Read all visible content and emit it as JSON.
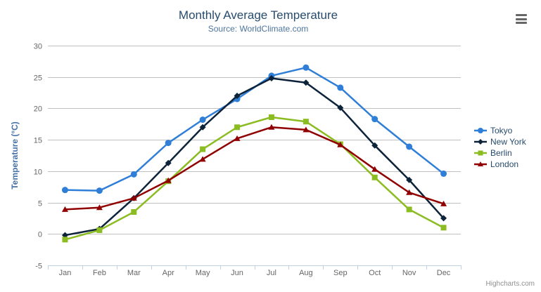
{
  "title": "Monthly Average Temperature",
  "subtitle": "Source: WorldClimate.com",
  "credits": "Highcharts.com",
  "export_menu": {
    "icon": "hamburger-icon"
  },
  "colors": {
    "title": "#274b6d",
    "subtitle": "#4d759e",
    "axis_labels": "#666666",
    "axis_title": "#4572a7",
    "gridline": "#c0c0c0",
    "axis_line": "#c0d0e0",
    "legend_text": "#274b6d",
    "credits_text": "#909090",
    "background": "#ffffff"
  },
  "chart_data": {
    "type": "line",
    "title": "Monthly Average Temperature",
    "subtitle": "Source: WorldClimate.com",
    "xlabel": "",
    "ylabel": "Temperature (°C)",
    "categories": [
      "Jan",
      "Feb",
      "Mar",
      "Apr",
      "May",
      "Jun",
      "Jul",
      "Aug",
      "Sep",
      "Oct",
      "Nov",
      "Dec"
    ],
    "ylim": [
      -5,
      30
    ],
    "yticks": [
      -5,
      0,
      5,
      10,
      15,
      20,
      25,
      30
    ],
    "grid": true,
    "legend_position": "right",
    "series": [
      {
        "name": "Tokyo",
        "color": "#2f7ed8",
        "marker": "circle",
        "values": [
          7.0,
          6.9,
          9.5,
          14.5,
          18.2,
          21.5,
          25.2,
          26.5,
          23.3,
          18.3,
          13.9,
          9.6
        ]
      },
      {
        "name": "New York",
        "color": "#0d233a",
        "marker": "diamond",
        "values": [
          -0.2,
          0.8,
          5.7,
          11.3,
          17.0,
          22.0,
          24.8,
          24.1,
          20.1,
          14.1,
          8.6,
          2.5
        ]
      },
      {
        "name": "Berlin",
        "color": "#8bbc21",
        "marker": "square",
        "values": [
          -0.9,
          0.6,
          3.5,
          8.4,
          13.5,
          17.0,
          18.6,
          17.9,
          14.3,
          9.0,
          3.9,
          1.0
        ]
      },
      {
        "name": "London",
        "color": "#910000",
        "marker": "triangle",
        "values": [
          3.9,
          4.2,
          5.7,
          8.5,
          11.9,
          15.2,
          17.0,
          16.6,
          14.2,
          10.3,
          6.6,
          4.8
        ]
      }
    ]
  }
}
